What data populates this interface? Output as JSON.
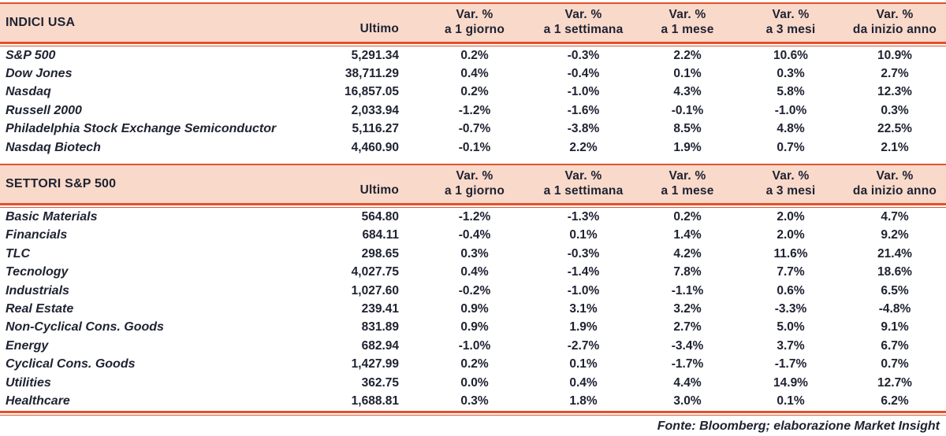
{
  "colors": {
    "header_bg": "#f9d9ca",
    "rule": "#e2512b",
    "text": "#1e2231"
  },
  "header": {
    "ultimo_label": "Ultimo",
    "var_label": "Var. %",
    "periods": [
      "a 1 giorno",
      "a 1 settimana",
      "a 1 mese",
      "a 3 mesi",
      "da inizio anno"
    ]
  },
  "chart_data": [
    {
      "type": "table",
      "title": "INDICI USA",
      "columns": [
        "",
        "Ultimo",
        "Var. % a 1 giorno",
        "Var. % a 1 settimana",
        "Var. % a 1 mese",
        "Var. % a 3 mesi",
        "Var. % da inizio anno"
      ],
      "rows": [
        [
          "S&P 500",
          "5,291.34",
          "0.2%",
          "-0.3%",
          "2.2%",
          "10.6%",
          "10.9%"
        ],
        [
          "Dow Jones",
          "38,711.29",
          "0.4%",
          "-0.4%",
          "0.1%",
          "0.3%",
          "2.7%"
        ],
        [
          "Nasdaq",
          "16,857.05",
          "0.2%",
          "-1.0%",
          "4.3%",
          "5.8%",
          "12.3%"
        ],
        [
          "Russell 2000",
          "2,033.94",
          "-1.2%",
          "-1.6%",
          "-0.1%",
          "-1.0%",
          "0.3%"
        ],
        [
          "Philadelphia Stock Exchange Semiconductor",
          "5,116.27",
          "-0.7%",
          "-3.8%",
          "8.5%",
          "4.8%",
          "22.5%"
        ],
        [
          "Nasdaq Biotech",
          "4,460.90",
          "-0.1%",
          "2.2%",
          "1.9%",
          "0.7%",
          "2.1%"
        ]
      ]
    },
    {
      "type": "table",
      "title": "SETTORI S&P 500",
      "columns": [
        "",
        "Ultimo",
        "Var. % a 1 giorno",
        "Var. % a 1 settimana",
        "Var. % a 1 mese",
        "Var. % a 3 mesi",
        "Var. % da inizio anno"
      ],
      "rows": [
        [
          "Basic Materials",
          "564.80",
          "-1.2%",
          "-1.3%",
          "0.2%",
          "2.0%",
          "4.7%"
        ],
        [
          "Financials",
          "684.11",
          "-0.4%",
          "0.1%",
          "1.4%",
          "2.0%",
          "9.2%"
        ],
        [
          "TLC",
          "298.65",
          "0.3%",
          "-0.3%",
          "4.2%",
          "11.6%",
          "21.4%"
        ],
        [
          "Tecnology",
          "4,027.75",
          "0.4%",
          "-1.4%",
          "7.8%",
          "7.7%",
          "18.6%"
        ],
        [
          "Industrials",
          "1,027.60",
          "-0.2%",
          "-1.0%",
          "-1.1%",
          "0.6%",
          "6.5%"
        ],
        [
          "Real Estate",
          "239.41",
          "0.9%",
          "3.1%",
          "3.2%",
          "-3.3%",
          "-4.8%"
        ],
        [
          "Non-Cyclical Cons. Goods",
          "831.89",
          "0.9%",
          "1.9%",
          "2.7%",
          "5.0%",
          "9.1%"
        ],
        [
          "Energy",
          "682.94",
          "-1.0%",
          "-2.7%",
          "-3.4%",
          "3.7%",
          "6.7%"
        ],
        [
          "Cyclical Cons. Goods",
          "1,427.99",
          "0.2%",
          "0.1%",
          "-1.7%",
          "-1.7%",
          "0.7%"
        ],
        [
          "Utilities",
          "362.75",
          "0.0%",
          "0.4%",
          "4.4%",
          "14.9%",
          "12.7%"
        ],
        [
          "Healthcare",
          "1,688.81",
          "0.3%",
          "1.8%",
          "3.0%",
          "0.1%",
          "6.2%"
        ]
      ]
    }
  ],
  "footer": "Fonte: Bloomberg; elaborazione Market Insight"
}
